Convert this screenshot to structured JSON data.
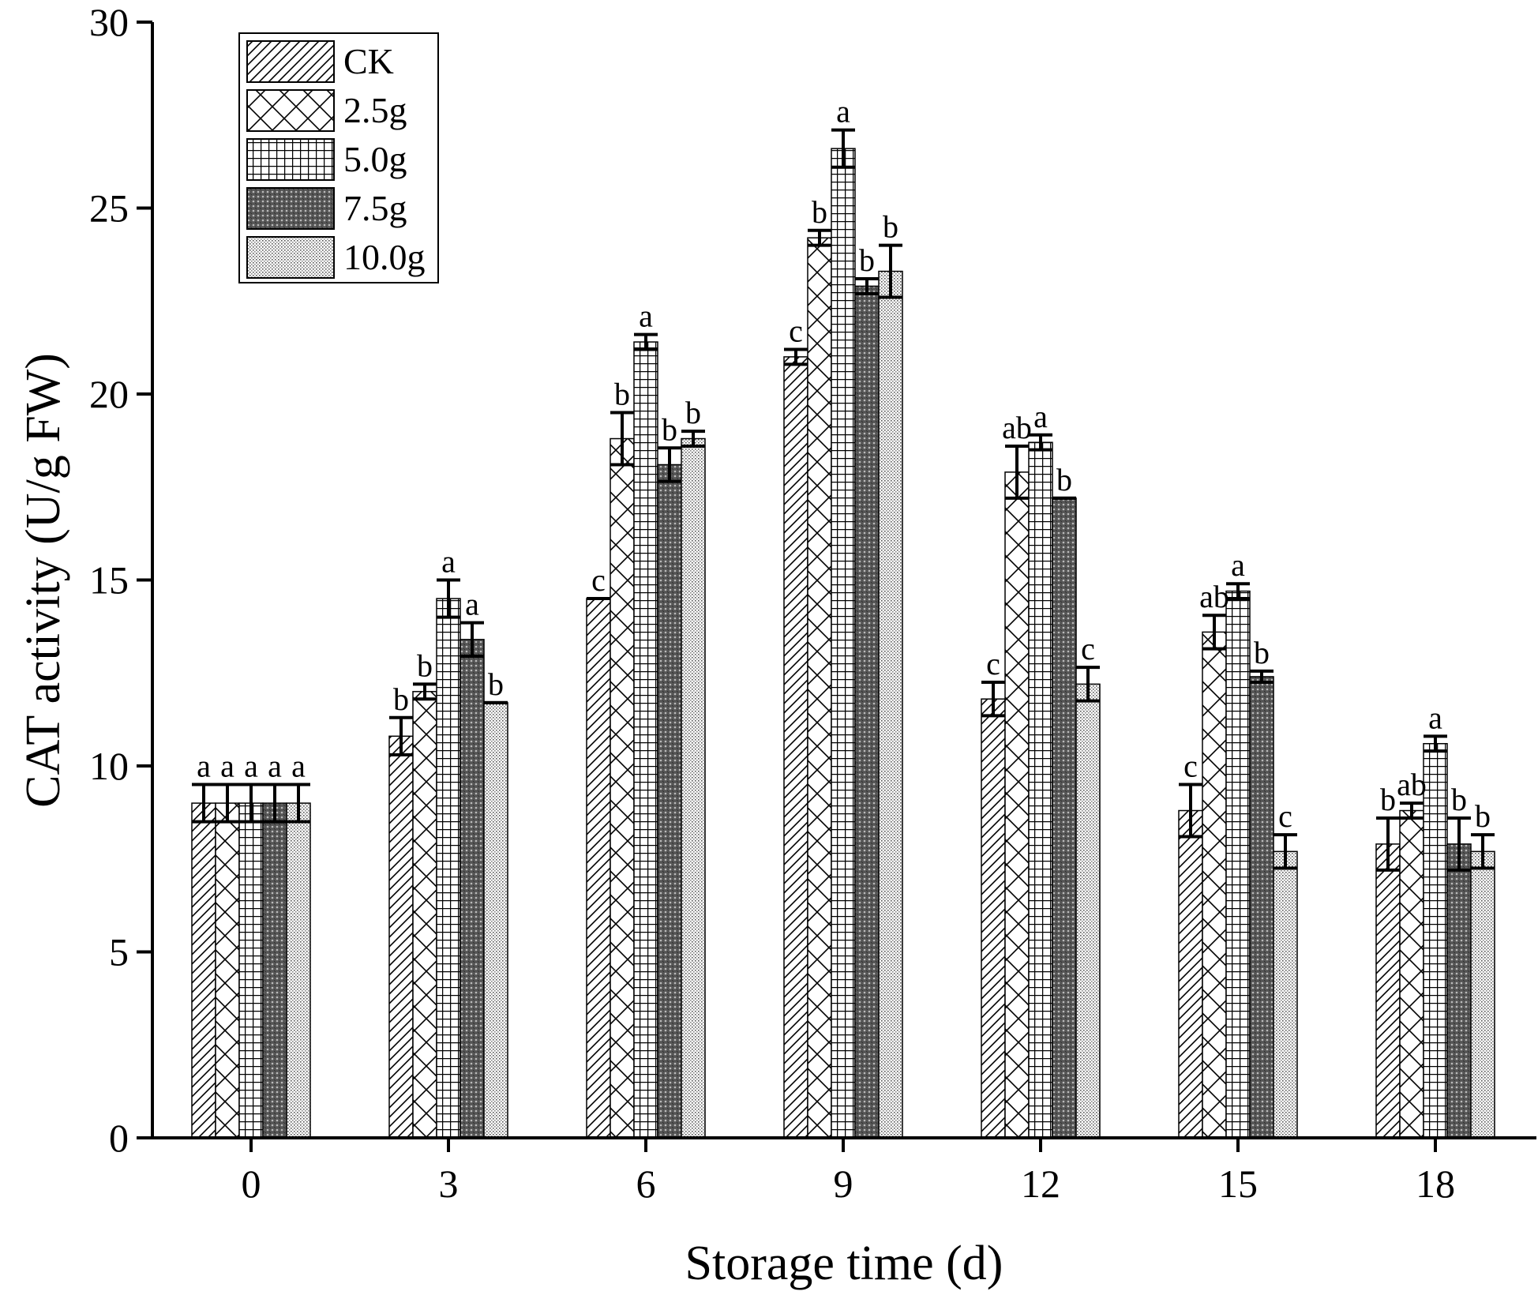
{
  "chart_data": {
    "type": "bar",
    "title": "",
    "xlabel": "Storage time (d)",
    "ylabel": "CAT activity (U/g FW)",
    "ylim": [
      0,
      30
    ],
    "yticks": [
      "0",
      "5",
      "10",
      "15",
      "20",
      "25",
      "30"
    ],
    "categories": [
      "0",
      "3",
      "6",
      "9",
      "12",
      "15",
      "18"
    ],
    "legend_position": "top-left",
    "series": [
      {
        "name": "CK",
        "pattern": "diagonal",
        "values": [
          9.0,
          10.8,
          14.5,
          21.0,
          11.8,
          8.8,
          7.9
        ],
        "errors": [
          0.5,
          0.5,
          0.0,
          0.2,
          0.45,
          0.7,
          0.7
        ],
        "letters": [
          "a",
          "b",
          "c",
          "c",
          "c",
          "c",
          "b"
        ]
      },
      {
        "name": "2.5g",
        "pattern": "crosshatch",
        "values": [
          9.0,
          12.0,
          18.8,
          24.2,
          17.9,
          13.6,
          8.8
        ],
        "errors": [
          0.5,
          0.2,
          0.7,
          0.2,
          0.7,
          0.45,
          0.2
        ],
        "letters": [
          "a",
          "b",
          "b",
          "b",
          "ab",
          "ab",
          "ab"
        ]
      },
      {
        "name": "5.0g",
        "pattern": "grid",
        "values": [
          9.0,
          14.5,
          21.4,
          26.6,
          18.7,
          14.7,
          10.6
        ],
        "errors": [
          0.5,
          0.5,
          0.2,
          0.5,
          0.2,
          0.2,
          0.2
        ],
        "letters": [
          "a",
          "a",
          "a",
          "a",
          "a",
          "a",
          "a"
        ]
      },
      {
        "name": "7.5g",
        "pattern": "dense",
        "values": [
          9.0,
          13.4,
          18.1,
          22.9,
          17.2,
          12.4,
          7.9
        ],
        "errors": [
          0.5,
          0.45,
          0.45,
          0.2,
          0.0,
          0.15,
          0.7
        ],
        "letters": [
          "a",
          "a",
          "b",
          "b",
          "b",
          "b",
          "b"
        ]
      },
      {
        "name": "10.0g",
        "pattern": "dots",
        "values": [
          9.0,
          11.7,
          18.8,
          23.3,
          12.2,
          7.7,
          7.7
        ],
        "errors": [
          0.5,
          0.0,
          0.2,
          0.7,
          0.45,
          0.45,
          0.45
        ],
        "letters": [
          "a",
          "b",
          "b",
          "b",
          "c",
          "c",
          "b"
        ]
      }
    ]
  }
}
